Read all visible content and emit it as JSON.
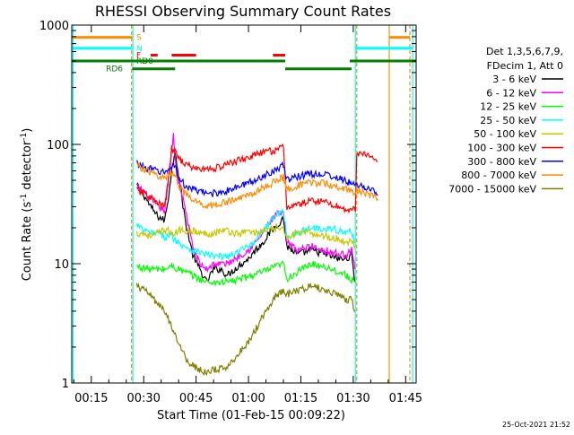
{
  "chart_data": {
    "type": "line",
    "title": "RHESSI Observing Summary Count Rates",
    "xlabel": "Start Time (01-Feb-15 00:09:22)",
    "ylabel_prefix": "Count Rate (s",
    "ylabel_sup": "-1",
    "ylabel_mid": " detector",
    "ylabel_sup2": "-1",
    "ylabel_suffix": ")",
    "yscale": "log",
    "ylim": [
      1,
      1000
    ],
    "xlim": [
      9.4,
      108
    ],
    "x_units": "minutes after 00:00 on 01-Feb-15",
    "x_ticks": [
      {
        "v": 15,
        "label": "00:15"
      },
      {
        "v": 30,
        "label": "00:30"
      },
      {
        "v": 45,
        "label": "00:45"
      },
      {
        "v": 60,
        "label": "01:00"
      },
      {
        "v": 75,
        "label": "01:15"
      },
      {
        "v": 90,
        "label": "01:30"
      },
      {
        "v": 105,
        "label": "01:45"
      }
    ],
    "y_ticks": [
      {
        "v": 1,
        "label": "1"
      },
      {
        "v": 10,
        "label": "10"
      },
      {
        "v": 100,
        "label": "100"
      },
      {
        "v": 1000,
        "label": "1000"
      }
    ],
    "legend_header": [
      "Det 1,3,5,6,7,9,",
      "FDecim 1, Att 0"
    ],
    "legend_position": "right",
    "footer_date": "25-Oct-2021 21:52",
    "flags": [
      {
        "label": "S",
        "color": "#ff8c00",
        "y": 790,
        "segments": [
          [
            9.4,
            26.7
          ],
          [
            100.3,
            106.2
          ]
        ]
      },
      {
        "label": "N",
        "color": "#00ffff",
        "y": 640,
        "segments": [
          [
            9.4,
            26.7
          ],
          [
            90.5,
            107
          ]
        ]
      },
      {
        "label": "F",
        "color": "#ff0000",
        "y": 560,
        "segments": [
          [
            32,
            34
          ],
          [
            38,
            45
          ],
          [
            67,
            70.5
          ]
        ]
      },
      {
        "label": "RD0",
        "color": "#007f00",
        "y": 500,
        "segments": [
          [
            9.4,
            70.5
          ],
          [
            89,
            108
          ]
        ]
      },
      {
        "label": "RD6",
        "color": "#007f00",
        "y": 430,
        "segments": [
          [
            26.7,
            39
          ],
          [
            70.5,
            89.5
          ]
        ]
      }
    ],
    "vlines": [
      {
        "x": 9.8,
        "color": "#00ffff"
      },
      {
        "x": 26.5,
        "color": "#ff8c00",
        "dash": true
      },
      {
        "x": 26.9,
        "color": "#00ffff"
      },
      {
        "x": 90.6,
        "color": "#00ffff"
      },
      {
        "x": 91.0,
        "color": "#ff8c00",
        "dash": true
      },
      {
        "x": 100.3,
        "color": "#ff8c00"
      },
      {
        "x": 106.2,
        "color": "#ff8c00",
        "dash": true
      },
      {
        "x": 107.0,
        "color": "#00ffff"
      }
    ],
    "series": [
      {
        "name": "3 - 6 keV",
        "color": "#000000",
        "x": [
          28,
          30,
          32,
          34,
          36,
          37,
          38,
          39,
          40,
          42,
          44,
          46,
          48,
          50,
          52,
          54,
          56,
          58,
          60,
          62,
          64,
          66,
          68,
          70,
          71,
          74,
          78,
          82,
          86,
          88,
          89.5,
          90.5
        ],
        "y": [
          45,
          38,
          30,
          25,
          23,
          35,
          60,
          90,
          55,
          22,
          12,
          9,
          7,
          9,
          9,
          8,
          9,
          10,
          11,
          13,
          15,
          18,
          21,
          24,
          14,
          12,
          13,
          12,
          11,
          11,
          12,
          7
        ]
      },
      {
        "name": "6 - 12 keV",
        "color": "#ff00ff",
        "x": [
          28,
          30,
          32,
          34,
          36,
          37,
          38,
          38.5,
          39,
          40,
          42,
          44,
          46,
          48,
          50,
          52,
          54,
          56,
          58,
          60,
          62,
          64,
          66,
          68,
          70,
          71,
          74,
          78,
          82,
          86,
          88,
          89.5,
          90.5
        ],
        "y": [
          45,
          40,
          35,
          30,
          28,
          50,
          90,
          125,
          75,
          50,
          28,
          14,
          10,
          9,
          10,
          10,
          10,
          11,
          12,
          13,
          15,
          18,
          22,
          26,
          26,
          15,
          13,
          14,
          13,
          12,
          12,
          13,
          9
        ]
      },
      {
        "name": "12 - 25 keV",
        "color": "#00ff00",
        "x": [
          28,
          32,
          36,
          38,
          40,
          44,
          48,
          52,
          56,
          60,
          64,
          68,
          70,
          71,
          74,
          78,
          82,
          86,
          88,
          90.5
        ],
        "y": [
          9.5,
          9,
          9,
          9.5,
          9,
          8,
          7,
          7,
          7.2,
          7.8,
          8.5,
          9.5,
          10,
          7.5,
          8.5,
          10,
          9.5,
          8.5,
          8,
          7
        ]
      },
      {
        "name": "25 - 50 keV",
        "color": "#00ffff",
        "x": [
          28,
          30,
          32,
          34,
          36,
          38,
          40,
          42,
          44,
          46,
          48,
          50,
          52,
          54,
          56,
          58,
          60,
          62,
          64,
          66,
          68,
          70,
          71,
          74,
          78,
          82,
          86,
          88,
          89.5,
          90.5
        ],
        "y": [
          21,
          19,
          18,
          18,
          17,
          17,
          15,
          14,
          13,
          12.5,
          12,
          11.5,
          11.5,
          11.5,
          12,
          13,
          14,
          16,
          19,
          22,
          26,
          27,
          17,
          18,
          20,
          20,
          19,
          18,
          19,
          15
        ]
      },
      {
        "name": "50 - 100 keV",
        "color": "#c8c800",
        "x": [
          28,
          30,
          32,
          34,
          36,
          37,
          38,
          39,
          40,
          42,
          44,
          46,
          48,
          50,
          52,
          54,
          56,
          58,
          60,
          62,
          64,
          66,
          68,
          70,
          71,
          74,
          78,
          82,
          86,
          88,
          89.5,
          90.5
        ],
        "y": [
          18,
          18,
          17,
          18,
          19,
          20,
          17,
          18,
          19,
          19,
          19,
          18,
          18,
          18,
          19,
          19,
          18,
          18,
          19,
          18,
          19,
          19,
          20,
          19,
          17,
          18,
          18,
          17,
          16,
          15,
          16,
          14
        ]
      },
      {
        "name": "100 - 300 keV",
        "color": "#ff0000",
        "x": [
          28,
          30,
          32,
          34,
          36,
          37,
          38,
          39,
          40,
          42,
          44,
          46,
          48,
          50,
          52,
          54,
          56,
          58,
          60,
          62,
          64,
          66,
          68,
          70,
          71,
          74,
          78,
          82,
          86,
          88,
          89.5,
          90.6,
          91,
          93,
          95,
          97
        ],
        "y": [
          41,
          39,
          36,
          32,
          30,
          45,
          92,
          86,
          78,
          68,
          64,
          62,
          62,
          63,
          65,
          68,
          72,
          75,
          78,
          82,
          85,
          88,
          90,
          94,
          30,
          31,
          34,
          33,
          30,
          28,
          29,
          28,
          86,
          82,
          78,
          72
        ]
      },
      {
        "name": "300 - 800 keV",
        "color": "#0000ff",
        "x": [
          28,
          30,
          32,
          34,
          36,
          37,
          38,
          39,
          40,
          42,
          44,
          46,
          48,
          50,
          52,
          54,
          56,
          58,
          60,
          62,
          64,
          66,
          68,
          70,
          71,
          74,
          78,
          82,
          86,
          88,
          89.5,
          90.6,
          91,
          93,
          95,
          97
        ],
        "y": [
          70,
          65,
          62,
          60,
          58,
          60,
          67,
          66,
          52,
          45,
          42,
          40,
          39,
          39,
          40,
          41,
          43,
          45,
          48,
          50,
          54,
          58,
          63,
          66,
          50,
          54,
          57,
          56,
          52,
          49,
          47,
          44,
          47,
          44,
          42,
          38
        ]
      },
      {
        "name": "800 - 7000 keV",
        "color": "#ff8c00",
        "x": [
          28,
          30,
          32,
          34,
          36,
          37,
          38,
          39,
          40,
          42,
          44,
          46,
          48,
          50,
          52,
          54,
          56,
          58,
          60,
          62,
          64,
          66,
          68,
          70,
          71,
          74,
          78,
          82,
          86,
          88,
          89.5,
          90.6,
          91,
          93,
          95,
          97
        ],
        "y": [
          68,
          62,
          58,
          55,
          52,
          55,
          58,
          57,
          46,
          38,
          34,
          32,
          31,
          31,
          32,
          33,
          34,
          36,
          38,
          40,
          43,
          46,
          50,
          53,
          42,
          45,
          48,
          47,
          44,
          42,
          41,
          39,
          42,
          39,
          37,
          35
        ]
      },
      {
        "name": "7000 - 15000 keV",
        "color": "#7f7f00",
        "x": [
          28,
          30,
          32,
          34,
          36,
          38,
          40,
          42,
          44,
          46,
          48,
          50,
          52,
          54,
          56,
          58,
          60,
          62,
          64,
          66,
          68,
          70,
          71,
          74,
          78,
          82,
          86,
          88,
          89.5,
          90.5
        ],
        "y": [
          6.5,
          6,
          5.5,
          4.5,
          4,
          3,
          2.2,
          1.6,
          1.4,
          1.3,
          1.2,
          1.3,
          1.3,
          1.4,
          1.6,
          1.9,
          2.2,
          2.8,
          3.6,
          4.5,
          5.5,
          6,
          5.5,
          6,
          6.5,
          6,
          5.5,
          5,
          5,
          4
        ]
      }
    ]
  }
}
